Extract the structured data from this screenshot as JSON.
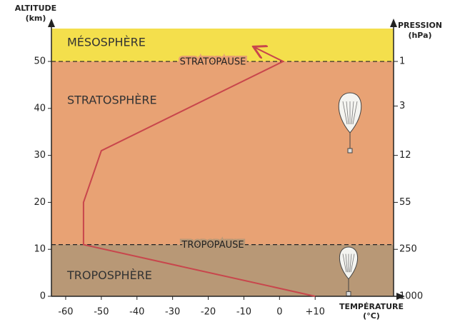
{
  "chart_data": {
    "type": "line",
    "y_label": [
      "ALTITUDE",
      "(km)"
    ],
    "y2_label": [
      "PRESSION",
      "(hPa)"
    ],
    "x_label": [
      "TEMPÉRATURE",
      "(°C)"
    ],
    "x": [
      10,
      -55,
      -55,
      -50,
      1,
      -7
    ],
    "values": [
      0,
      11,
      20,
      31,
      50,
      53
    ],
    "color": "#c8464c",
    "xlim": [
      -64,
      32
    ],
    "xticks": [
      -60,
      -50,
      -40,
      -30,
      -20,
      -10,
      0,
      {
        "value": 10,
        "label": "+10"
      }
    ],
    "ylim": [
      0,
      57
    ],
    "yticks": [
      0,
      10,
      20,
      30,
      40,
      50
    ],
    "pressure_ticks": [
      {
        "altitude": 50,
        "hpa": 1
      },
      {
        "altitude": 40.5,
        "hpa": 3
      },
      {
        "altitude": 30,
        "hpa": 12
      },
      {
        "altitude": 20,
        "hpa": 55
      },
      {
        "altitude": 10,
        "hpa": 250
      },
      {
        "altitude": 0,
        "hpa": 1000
      }
    ],
    "layers": [
      {
        "name": "MÉSOSPHÈRE",
        "color": "#f4df4c"
      },
      {
        "name": "STRATOSPHÈRE",
        "color": "#e8a274"
      },
      {
        "name": "TROPOSPHÈRE",
        "color": "#b89876"
      }
    ],
    "pauses": [
      {
        "name": "STRATOPAUSE",
        "altitude": 50
      },
      {
        "name": "TROPOPAUSE",
        "altitude": 11
      }
    ]
  }
}
